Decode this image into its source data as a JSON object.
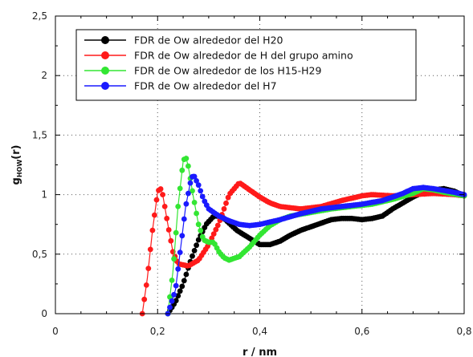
{
  "chart_data": {
    "type": "line",
    "xlabel": "r / nm",
    "ylabel_main": "g",
    "ylabel_sub": "HOW",
    "ylabel_suffix": "(r)",
    "xlim": [
      0,
      0.8
    ],
    "ylim": [
      0,
      2.5
    ],
    "x_ticks": [
      0,
      0.2,
      0.4,
      0.6,
      0.8
    ],
    "x_tick_labels": [
      "0",
      "0,2",
      "0,4",
      "0,6",
      "0,8"
    ],
    "y_ticks": [
      0,
      0.5,
      1,
      1.5,
      2,
      2.5
    ],
    "y_tick_labels": [
      "0",
      "0,5",
      "1",
      "1,5",
      "2",
      "2,5"
    ],
    "grid": true,
    "legend_position": "top-left",
    "series": [
      {
        "name": "FDR de Ow alrededor del H20",
        "color": "#000000",
        "points": [
          [
            0.22,
            0.0
          ],
          [
            0.235,
            0.1
          ],
          [
            0.25,
            0.25
          ],
          [
            0.265,
            0.45
          ],
          [
            0.28,
            0.62
          ],
          [
            0.295,
            0.75
          ],
          [
            0.31,
            0.82
          ],
          [
            0.325,
            0.82
          ],
          [
            0.34,
            0.76
          ],
          [
            0.355,
            0.7
          ],
          [
            0.37,
            0.66
          ],
          [
            0.385,
            0.62
          ],
          [
            0.4,
            0.58
          ],
          [
            0.42,
            0.58
          ],
          [
            0.44,
            0.61
          ],
          [
            0.46,
            0.66
          ],
          [
            0.48,
            0.7
          ],
          [
            0.5,
            0.73
          ],
          [
            0.52,
            0.76
          ],
          [
            0.54,
            0.79
          ],
          [
            0.56,
            0.8
          ],
          [
            0.58,
            0.8
          ],
          [
            0.6,
            0.79
          ],
          [
            0.62,
            0.8
          ],
          [
            0.64,
            0.82
          ],
          [
            0.66,
            0.88
          ],
          [
            0.68,
            0.93
          ],
          [
            0.7,
            0.98
          ],
          [
            0.72,
            1.02
          ],
          [
            0.74,
            1.04
          ],
          [
            0.76,
            1.05
          ],
          [
            0.78,
            1.03
          ],
          [
            0.8,
            0.99
          ]
        ]
      },
      {
        "name": "FDR de Ow alrededor de H del grupo amino",
        "color": "#ff1a1a",
        "points": [
          [
            0.17,
            0.0
          ],
          [
            0.18,
            0.3
          ],
          [
            0.19,
            0.7
          ],
          [
            0.2,
            1.02
          ],
          [
            0.205,
            1.06
          ],
          [
            0.21,
            1.0
          ],
          [
            0.22,
            0.75
          ],
          [
            0.23,
            0.52
          ],
          [
            0.24,
            0.42
          ],
          [
            0.26,
            0.4
          ],
          [
            0.28,
            0.45
          ],
          [
            0.3,
            0.58
          ],
          [
            0.32,
            0.76
          ],
          [
            0.34,
            1.0
          ],
          [
            0.36,
            1.1
          ],
          [
            0.38,
            1.04
          ],
          [
            0.4,
            0.98
          ],
          [
            0.42,
            0.93
          ],
          [
            0.44,
            0.9
          ],
          [
            0.48,
            0.88
          ],
          [
            0.52,
            0.9
          ],
          [
            0.56,
            0.95
          ],
          [
            0.6,
            0.99
          ],
          [
            0.62,
            1.0
          ],
          [
            0.66,
            0.99
          ],
          [
            0.7,
            1.0
          ],
          [
            0.74,
            1.01
          ],
          [
            0.78,
            1.0
          ],
          [
            0.8,
            0.99
          ]
        ]
      },
      {
        "name": "FDR de Ow alrededor de los H15-H29",
        "color": "#33e633",
        "points": [
          [
            0.22,
            0.0
          ],
          [
            0.23,
            0.35
          ],
          [
            0.24,
            0.9
          ],
          [
            0.25,
            1.28
          ],
          [
            0.255,
            1.32
          ],
          [
            0.26,
            1.24
          ],
          [
            0.27,
            0.98
          ],
          [
            0.28,
            0.75
          ],
          [
            0.29,
            0.62
          ],
          [
            0.3,
            0.6
          ],
          [
            0.31,
            0.6
          ],
          [
            0.32,
            0.52
          ],
          [
            0.33,
            0.47
          ],
          [
            0.34,
            0.45
          ],
          [
            0.36,
            0.48
          ],
          [
            0.38,
            0.56
          ],
          [
            0.4,
            0.66
          ],
          [
            0.42,
            0.74
          ],
          [
            0.44,
            0.79
          ],
          [
            0.46,
            0.82
          ],
          [
            0.5,
            0.85
          ],
          [
            0.54,
            0.88
          ],
          [
            0.58,
            0.9
          ],
          [
            0.62,
            0.92
          ],
          [
            0.66,
            0.96
          ],
          [
            0.7,
            1.01
          ],
          [
            0.72,
            1.05
          ],
          [
            0.74,
            1.04
          ],
          [
            0.76,
            1.02
          ],
          [
            0.8,
            0.99
          ]
        ]
      },
      {
        "name": "FDR de Ow alrededor del H7",
        "color": "#1a1aff",
        "points": [
          [
            0.22,
            0.0
          ],
          [
            0.235,
            0.2
          ],
          [
            0.245,
            0.55
          ],
          [
            0.255,
            0.9
          ],
          [
            0.265,
            1.12
          ],
          [
            0.27,
            1.17
          ],
          [
            0.28,
            1.08
          ],
          [
            0.29,
            0.96
          ],
          [
            0.3,
            0.88
          ],
          [
            0.32,
            0.82
          ],
          [
            0.34,
            0.78
          ],
          [
            0.36,
            0.75
          ],
          [
            0.38,
            0.74
          ],
          [
            0.4,
            0.75
          ],
          [
            0.44,
            0.79
          ],
          [
            0.48,
            0.84
          ],
          [
            0.52,
            0.88
          ],
          [
            0.56,
            0.9
          ],
          [
            0.6,
            0.92
          ],
          [
            0.64,
            0.95
          ],
          [
            0.68,
            1.01
          ],
          [
            0.7,
            1.05
          ],
          [
            0.72,
            1.06
          ],
          [
            0.74,
            1.05
          ],
          [
            0.78,
            1.02
          ],
          [
            0.8,
            1.0
          ]
        ]
      }
    ]
  }
}
